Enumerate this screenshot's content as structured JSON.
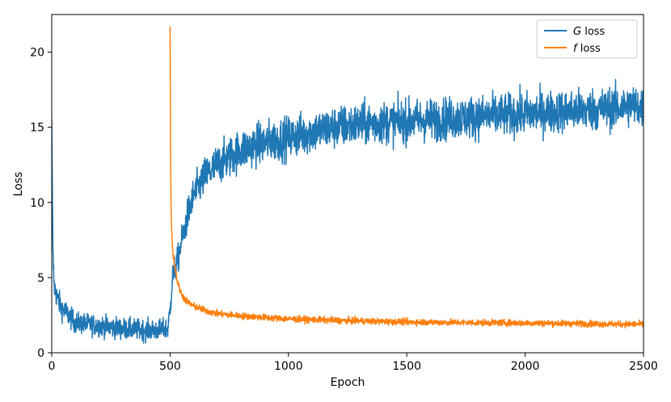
{
  "chart_data": {
    "type": "line",
    "xlabel": "Epoch",
    "ylabel": "Loss",
    "xlim": [
      0,
      2500
    ],
    "ylim": [
      0,
      22.5
    ],
    "xticks": [
      "0",
      "500",
      "1000",
      "1500",
      "2000",
      "2500"
    ],
    "yticks": [
      "0",
      "5",
      "10",
      "15",
      "20"
    ],
    "grid": false,
    "legend_position": "top-right",
    "series": [
      {
        "name": "G loss",
        "name_symbol": "G",
        "name_suffix": " loss",
        "color": "#1f77b4",
        "x": [
          0,
          5,
          10,
          20,
          40,
          60,
          80,
          100,
          150,
          200,
          250,
          300,
          350,
          400,
          450,
          490,
          500,
          510,
          520,
          530,
          550,
          580,
          600,
          650,
          700,
          750,
          800,
          900,
          1000,
          1100,
          1200,
          1300,
          1400,
          1500,
          1600,
          1700,
          1800,
          1900,
          2000,
          2100,
          2200,
          2300,
          2400,
          2450,
          2500
        ],
        "values": [
          15.5,
          6.5,
          4.5,
          3.8,
          3.0,
          2.7,
          2.3,
          2.0,
          1.9,
          1.8,
          1.7,
          1.6,
          1.55,
          1.5,
          1.5,
          1.6,
          2.8,
          5.0,
          5.6,
          6.0,
          7.5,
          9.5,
          10.5,
          11.8,
          12.5,
          13.0,
          13.5,
          14.0,
          14.3,
          14.7,
          15.0,
          15.2,
          15.3,
          15.4,
          15.5,
          15.6,
          15.7,
          15.8,
          15.9,
          16.0,
          16.1,
          16.2,
          16.3,
          16.5,
          16.2
        ],
        "noise": 0.5
      },
      {
        "name": "f loss",
        "name_symbol": "f",
        "name_suffix": " loss",
        "color": "#ff7f0e",
        "x": [
          500,
          502,
          505,
          510,
          515,
          520,
          530,
          540,
          560,
          580,
          600,
          650,
          700,
          800,
          900,
          1000,
          1200,
          1500,
          1800,
          2000,
          2200,
          2400,
          2500
        ],
        "values": [
          21.7,
          13.0,
          9.0,
          7.0,
          6.3,
          5.8,
          4.8,
          4.2,
          3.6,
          3.3,
          3.1,
          2.8,
          2.6,
          2.45,
          2.35,
          2.25,
          2.15,
          2.05,
          2.0,
          1.98,
          1.95,
          1.9,
          1.9
        ],
        "noise": 0.15
      }
    ]
  }
}
